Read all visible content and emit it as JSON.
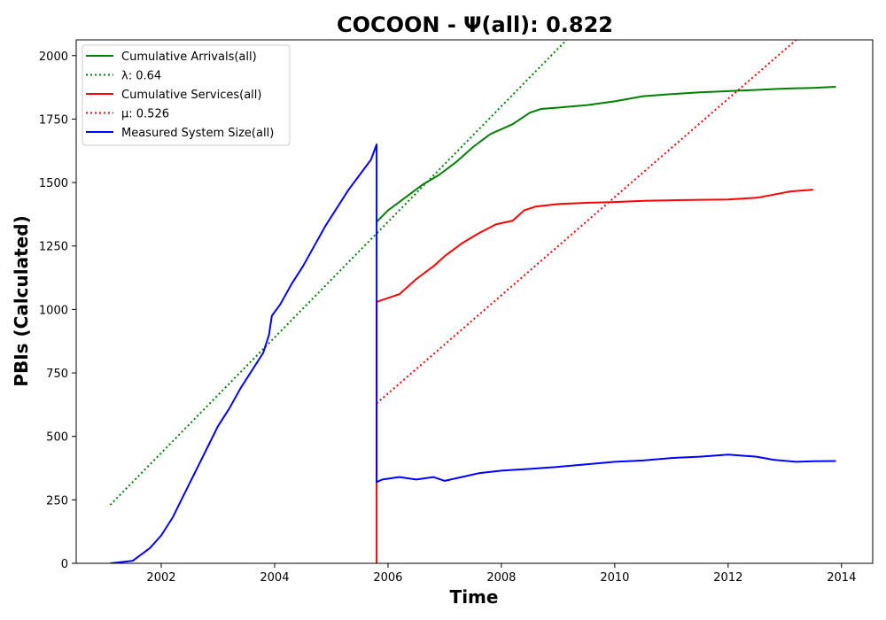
{
  "chart_data": {
    "type": "line",
    "title": "COCOON -  Ψ(all): 0.822",
    "xlabel": "Time",
    "ylabel": "PBIs (Calculated)",
    "xlim": [
      2000.5,
      2014.55
    ],
    "ylim": [
      0,
      2062
    ],
    "x_ticks": [
      "2002",
      "2004",
      "2006",
      "2008",
      "2010",
      "2012",
      "2014"
    ],
    "y_ticks": [
      "0",
      "250",
      "500",
      "750",
      "1000",
      "1250",
      "1500",
      "1750",
      "2000"
    ],
    "grid": false,
    "legend_placement": "top-left",
    "legend": [
      {
        "label": "Cumulative Arrivals(all)",
        "color": "#008000",
        "style": "solid"
      },
      {
        "label": "λ: 0.64",
        "color": "#008000",
        "style": "dotted"
      },
      {
        "label": "Cumulative Services(all)",
        "color": "#ff0000",
        "style": "solid"
      },
      {
        "label": "μ: 0.526",
        "color": "#ff0000",
        "style": "dotted"
      },
      {
        "label": "Measured System Size(all)",
        "color": "#0000ff",
        "style": "solid"
      }
    ],
    "series": [
      {
        "name": "Cumulative Arrivals(all)",
        "color": "#008000",
        "style": "solid",
        "points": [
          [
            2005.8,
            1345
          ],
          [
            2006.0,
            1390
          ],
          [
            2006.3,
            1440
          ],
          [
            2006.6,
            1490
          ],
          [
            2006.9,
            1530
          ],
          [
            2007.2,
            1580
          ],
          [
            2007.5,
            1640
          ],
          [
            2007.8,
            1690
          ],
          [
            2008.2,
            1730
          ],
          [
            2008.5,
            1775
          ],
          [
            2008.7,
            1790
          ],
          [
            2009.0,
            1795
          ],
          [
            2009.5,
            1805
          ],
          [
            2010.0,
            1820
          ],
          [
            2010.5,
            1840
          ],
          [
            2011.0,
            1848
          ],
          [
            2011.5,
            1855
          ],
          [
            2012.0,
            1860
          ],
          [
            2012.5,
            1865
          ],
          [
            2013.0,
            1870
          ],
          [
            2013.5,
            1873
          ],
          [
            2013.9,
            1877
          ]
        ]
      },
      {
        "name": "λ: 0.64",
        "color": "#008000",
        "style": "dotted",
        "points": [
          [
            2001.1,
            230
          ],
          [
            2009.15,
            2062
          ]
        ]
      },
      {
        "name": "Cumulative Services(all)",
        "color": "#ff0000",
        "style": "solid",
        "points": [
          [
            2005.8,
            0
          ],
          [
            2005.8,
            1030
          ],
          [
            2006.2,
            1060
          ],
          [
            2006.5,
            1120
          ],
          [
            2006.8,
            1170
          ],
          [
            2007.0,
            1210
          ],
          [
            2007.3,
            1260
          ],
          [
            2007.6,
            1300
          ],
          [
            2007.9,
            1335
          ],
          [
            2008.2,
            1350
          ],
          [
            2008.4,
            1390
          ],
          [
            2008.6,
            1405
          ],
          [
            2009.0,
            1415
          ],
          [
            2009.5,
            1420
          ],
          [
            2010.0,
            1423
          ],
          [
            2010.5,
            1428
          ],
          [
            2011.0,
            1430
          ],
          [
            2011.5,
            1432
          ],
          [
            2012.0,
            1433
          ],
          [
            2012.5,
            1440
          ],
          [
            2012.8,
            1452
          ],
          [
            2013.1,
            1465
          ],
          [
            2013.5,
            1472
          ]
        ]
      },
      {
        "name": "μ: 0.526",
        "color": "#ff0000",
        "style": "dotted",
        "points": [
          [
            2005.8,
            630
          ],
          [
            2013.2,
            2062
          ]
        ]
      },
      {
        "name": "Measured System Size(all)",
        "color": "#0000ff",
        "style": "solid",
        "points": [
          [
            2001.1,
            0
          ],
          [
            2001.5,
            10
          ],
          [
            2001.8,
            60
          ],
          [
            2002.0,
            110
          ],
          [
            2002.2,
            180
          ],
          [
            2002.4,
            270
          ],
          [
            2002.6,
            360
          ],
          [
            2002.8,
            450
          ],
          [
            2003.0,
            540
          ],
          [
            2003.2,
            610
          ],
          [
            2003.4,
            690
          ],
          [
            2003.6,
            760
          ],
          [
            2003.8,
            830
          ],
          [
            2003.9,
            900
          ],
          [
            2003.95,
            975
          ],
          [
            2004.1,
            1020
          ],
          [
            2004.3,
            1100
          ],
          [
            2004.5,
            1170
          ],
          [
            2004.7,
            1250
          ],
          [
            2004.9,
            1330
          ],
          [
            2005.1,
            1400
          ],
          [
            2005.3,
            1470
          ],
          [
            2005.5,
            1530
          ],
          [
            2005.7,
            1590
          ],
          [
            2005.8,
            1650
          ],
          [
            2005.8,
            320
          ],
          [
            2005.9,
            330
          ],
          [
            2006.2,
            340
          ],
          [
            2006.5,
            330
          ],
          [
            2006.8,
            340
          ],
          [
            2007.0,
            325
          ],
          [
            2007.3,
            340
          ],
          [
            2007.6,
            355
          ],
          [
            2008.0,
            365
          ],
          [
            2008.5,
            372
          ],
          [
            2009.0,
            380
          ],
          [
            2009.5,
            390
          ],
          [
            2010.0,
            400
          ],
          [
            2010.5,
            405
          ],
          [
            2011.0,
            415
          ],
          [
            2011.5,
            420
          ],
          [
            2012.0,
            428
          ],
          [
            2012.5,
            420
          ],
          [
            2012.8,
            408
          ],
          [
            2013.2,
            400
          ],
          [
            2013.5,
            402
          ],
          [
            2013.9,
            403
          ]
        ]
      }
    ]
  }
}
